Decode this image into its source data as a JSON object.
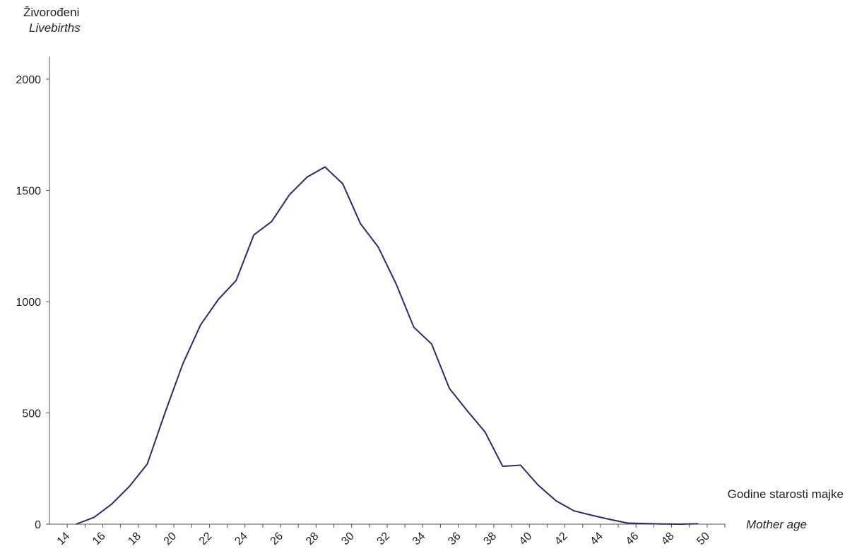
{
  "chart_data": {
    "type": "line",
    "ylabel": "Živorođeni",
    "ylabel_en": "Livebirths",
    "xlabel": "Godine starosti majke",
    "xlabel_en": "Mother age",
    "ylim": [
      0,
      2000
    ],
    "xlim": [
      13,
      51
    ],
    "y_ticks": [
      0,
      500,
      1000,
      1500,
      2000
    ],
    "x_ticks": [
      14,
      16,
      18,
      20,
      22,
      24,
      26,
      28,
      30,
      32,
      34,
      36,
      38,
      40,
      42,
      44,
      46,
      48,
      50
    ],
    "grid": false,
    "line_color": "#2b2a6e",
    "series": [
      {
        "x": [
          14.5,
          15.5,
          16.5,
          17.5,
          18.5,
          19.5,
          20.5,
          21.5,
          22.5,
          23.5,
          24.5,
          25.5,
          26.5,
          27.5,
          28.5,
          29.5,
          30.5,
          31.5,
          32.5,
          33.5,
          34.5,
          35.5,
          36.5,
          37.5,
          38.5,
          39.5,
          40.5,
          41.5,
          42.5,
          43.5,
          44.5,
          45.5,
          46.5,
          47.5,
          48.5,
          49.5
        ],
        "values": [
          0,
          30,
          90,
          170,
          270,
          500,
          720,
          895,
          1010,
          1095,
          1300,
          1360,
          1480,
          1560,
          1605,
          1530,
          1350,
          1245,
          1080,
          885,
          810,
          610,
          510,
          415,
          260,
          265,
          175,
          105,
          60,
          40,
          22,
          5,
          3,
          1,
          0,
          2
        ]
      }
    ]
  }
}
